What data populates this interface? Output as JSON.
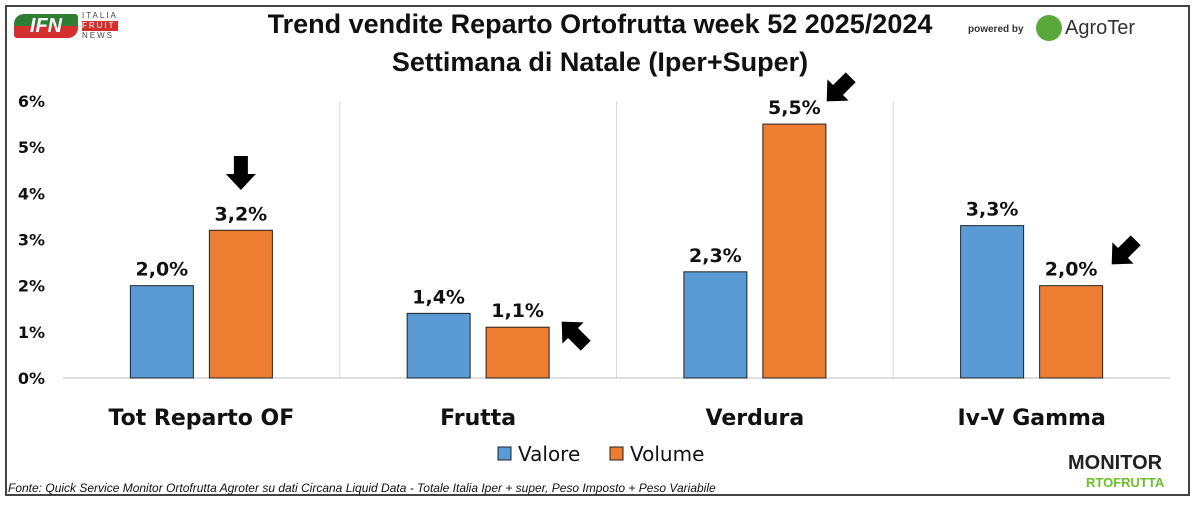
{
  "header": {
    "publisher_logo": "ITALIA FRUIT NEWS",
    "powered_by": "powered by",
    "sponsor_logo": "AgroTer"
  },
  "footer": {
    "source": "Fonte: Quick Service Monitor Ortofrutta Agroter su dati Circana Liquid Data - Totale Italia Iper + super, Peso Imposto + Peso Variabile",
    "brand_logo": "MONITOR ORTOFRUTTA"
  },
  "chart_data": {
    "type": "bar",
    "title": "Trend vendite Reparto Ortofrutta week 52 2025/2024",
    "subtitle": "Settimana di Natale (Iper+Super)",
    "categories": [
      "Tot Reparto OF",
      "Frutta",
      "Verdura",
      "Iv-V Gamma"
    ],
    "series": [
      {
        "name": "Valore",
        "color": "#5b9bd5",
        "values": [
          2.0,
          1.4,
          2.3,
          3.3
        ],
        "labels": [
          "2,0%",
          "1,4%",
          "2,3%",
          "3,3%"
        ]
      },
      {
        "name": "Volume",
        "color": "#ed7d31",
        "values": [
          3.2,
          1.1,
          5.5,
          2.0
        ],
        "labels": [
          "3,2%",
          "1,1%",
          "5,5%",
          "2,0%"
        ]
      }
    ],
    "ylim": [
      0,
      6
    ],
    "yticks": [
      "0%",
      "1%",
      "2%",
      "3%",
      "4%",
      "5%",
      "6%"
    ],
    "legend": "bottom",
    "grid": "vertical category separators"
  }
}
